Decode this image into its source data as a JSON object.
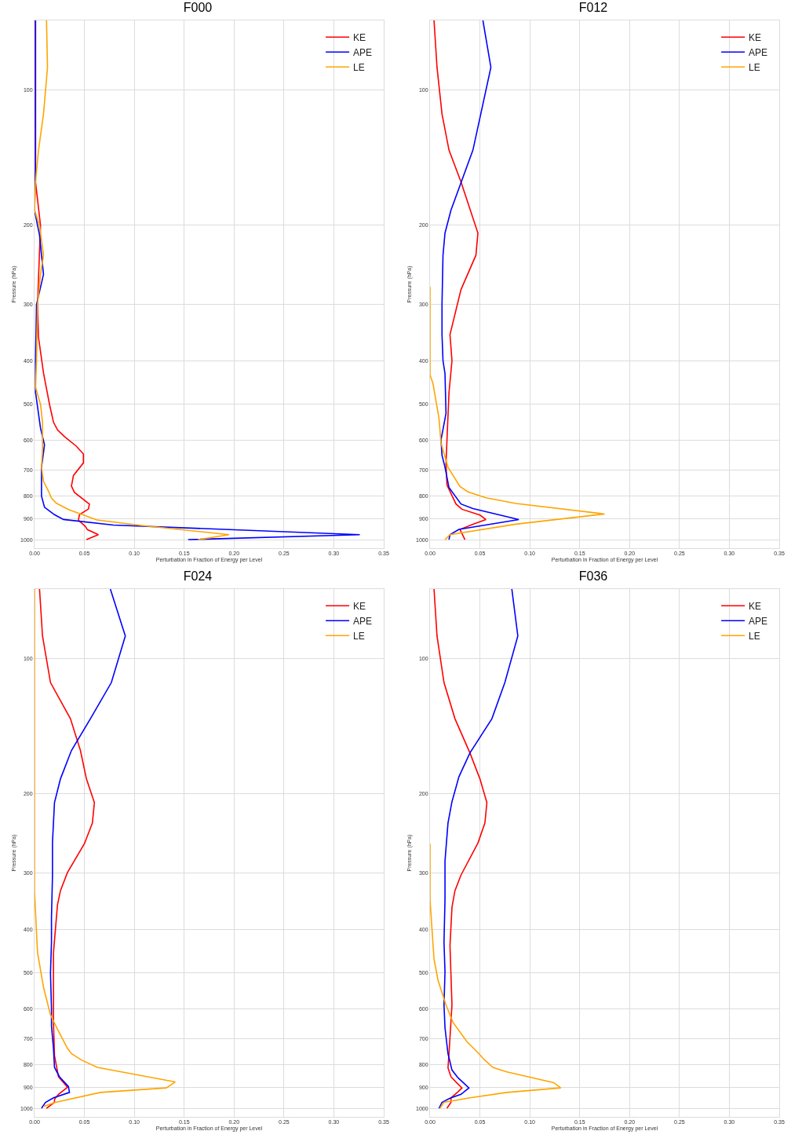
{
  "chart_data": [
    {
      "type": "line",
      "title": "F000",
      "xlabel": "Perturbation in Fraction of Energy per Level",
      "ylabel": "Pressure (hPa)",
      "log": "y",
      "grid": true,
      "legend": "top right",
      "xlim": [
        0,
        0.35
      ],
      "xticks": [
        {
          "value": 0,
          "label": "0.00"
        },
        {
          "value": 0.05,
          "label": "0.05"
        },
        {
          "value": 0.1,
          "label": "0.10"
        },
        {
          "value": 0.15,
          "label": "0.15"
        },
        {
          "value": 0.2,
          "label": "0.20"
        },
        {
          "value": 0.25,
          "label": "0.25"
        },
        {
          "value": 0.3,
          "label": "0.30"
        },
        {
          "value": 0.35,
          "label": "0.35"
        }
      ],
      "ylim": [
        1045,
        70
      ],
      "yticks": [
        100,
        200,
        300,
        400,
        500,
        600,
        700,
        800,
        900,
        1000
      ],
      "series": [
        {
          "name": "KE",
          "color": "#ff0000",
          "x": [
            0.001,
            0.001,
            0.001,
            0.006,
            0.003,
            0.004,
            0.009,
            0.015,
            0.019,
            0.023,
            0.03,
            0.042,
            0.049,
            0.049,
            0.039,
            0.037,
            0.04,
            0.055,
            0.054,
            0.045,
            0.044,
            0.051,
            0.053,
            0.064,
            0.052
          ],
          "values": [
            70,
            100,
            160,
            200,
            300,
            355,
            426,
            500,
            548,
            570,
            590,
            620,
            645,
            675,
            720,
            760,
            785,
            834,
            855,
            880,
            905,
            935,
            950,
            975,
            1000
          ]
        },
        {
          "name": "APE",
          "color": "#0000ff",
          "x": [
            0.001,
            0.001,
            0,
            0.003,
            0.005,
            0.007,
            0.009,
            0.002,
            0.001,
            0.001,
            0.006,
            0.01,
            0.009,
            0.007,
            0.007,
            0.01,
            0.014,
            0.02,
            0.029,
            0.079,
            0.326,
            0.154
          ],
          "values": [
            70,
            150,
            185,
            200,
            210,
            233,
            257,
            300,
            400,
            470,
            565,
            615,
            640,
            690,
            800,
            847,
            860,
            880,
            902,
            928,
            975,
            1000
          ]
        },
        {
          "name": "LE",
          "color": "#ffa500",
          "x": [
            0.012,
            0.013,
            0.009,
            0.004,
            0.001,
            0,
            0.005,
            0.009,
            0.006,
            0.003,
            0.002,
            0.001,
            0.006,
            0.008,
            0.008,
            0.007,
            0.009,
            0.014,
            0.017,
            0.022,
            0.034,
            0.0625,
            0.107,
            0.195,
            0.164
          ],
          "values": [
            70,
            89,
            113,
            136,
            160,
            185,
            200,
            233,
            257,
            300,
            400,
            458,
            500,
            548,
            632,
            690,
            742,
            780,
            809,
            830,
            857,
            904,
            930,
            975,
            1000
          ]
        }
      ]
    },
    {
      "type": "line",
      "title": "F012",
      "xlabel": "Perturbation in Fraction of Energy per Level",
      "ylabel": "Pressure (hPa)",
      "log": "y",
      "grid": true,
      "legend": "top right",
      "xlim": [
        0,
        0.35
      ],
      "xticks": [
        {
          "value": 0,
          "label": "0.00"
        },
        {
          "value": 0.05,
          "label": "0.05"
        },
        {
          "value": 0.1,
          "label": "0.10"
        },
        {
          "value": 0.15,
          "label": "0.15"
        },
        {
          "value": 0.2,
          "label": "0.20"
        },
        {
          "value": 0.25,
          "label": "0.25"
        },
        {
          "value": 0.3,
          "label": "0.30"
        },
        {
          "value": 0.35,
          "label": "0.35"
        }
      ],
      "ylim": [
        1045,
        70
      ],
      "yticks": [
        100,
        200,
        300,
        400,
        500,
        600,
        700,
        800,
        900,
        1000
      ],
      "series": [
        {
          "name": "KE",
          "color": "#ff0000",
          "x": [
            0.004,
            0.007,
            0.012,
            0.019,
            0.031,
            0.048,
            0.046,
            0.031,
            0.02,
            0.022,
            0.019,
            0.017,
            0.016,
            0.017,
            0.026,
            0.032,
            0.05,
            0.056,
            0.043,
            0.03,
            0.035
          ],
          "values": [
            70,
            89,
            113,
            136,
            160,
            208,
            233,
            278,
            350,
            400,
            471,
            600,
            680,
            756,
            833,
            856,
            882,
            902,
            924,
            949,
            1000
          ]
        },
        {
          "name": "APE",
          "color": "#0000ff",
          "x": [
            0.053,
            0.061,
            0.043,
            0.021,
            0.015,
            0.013,
            0.012,
            0.012,
            0.013,
            0.015,
            0.016,
            0.011,
            0.012,
            0.015,
            0.019,
            0.031,
            0.043,
            0.089,
            0.029,
            0.02,
            0.019
          ],
          "values": [
            70,
            89,
            136,
            185,
            208,
            233,
            300,
            350,
            400,
            427,
            524,
            600,
            649,
            690,
            766,
            833,
            853,
            902,
            949,
            975,
            1000
          ]
        },
        {
          "name": "LE",
          "color": "#ffa500",
          "x": [
            0,
            0,
            0.003,
            0.009,
            0.011,
            0.018,
            0.03,
            0.038,
            0.056,
            0.086,
            0.175,
            0.086,
            0.02,
            0.015
          ],
          "values": [
            274,
            430,
            450,
            538,
            610,
            690,
            762,
            783,
            807,
            831,
            877,
            924,
            975,
            1000
          ]
        }
      ]
    },
    {
      "type": "line",
      "title": "F024",
      "xlabel": "Perturbation in Fraction of Energy per Level",
      "ylabel": "Pressure (hPa)",
      "log": "y",
      "grid": true,
      "legend": "top right",
      "xlim": [
        0,
        0.35
      ],
      "xticks": [
        {
          "value": 0,
          "label": "0.00"
        },
        {
          "value": 0.05,
          "label": "0.05"
        },
        {
          "value": 0.1,
          "label": "0.10"
        },
        {
          "value": 0.15,
          "label": "0.15"
        },
        {
          "value": 0.2,
          "label": "0.20"
        },
        {
          "value": 0.25,
          "label": "0.25"
        },
        {
          "value": 0.3,
          "label": "0.30"
        },
        {
          "value": 0.35,
          "label": "0.35"
        }
      ],
      "ylim": [
        1045,
        70
      ],
      "yticks": [
        100,
        200,
        300,
        400,
        500,
        600,
        700,
        800,
        900,
        1000
      ],
      "series": [
        {
          "name": "KE",
          "color": "#ff0000",
          "x": [
            0.005,
            0.008,
            0.016,
            0.036,
            0.046,
            0.052,
            0.06,
            0.058,
            0.05,
            0.033,
            0.026,
            0.023,
            0.019,
            0.019,
            0.02,
            0.024,
            0.033,
            0.024,
            0.02,
            0.02,
            0.012
          ],
          "values": [
            70,
            89,
            113,
            136,
            160,
            185,
            209,
            232,
            258,
            299,
            328,
            353,
            450,
            644,
            763,
            851,
            898,
            931,
            956,
            970,
            1000
          ]
        },
        {
          "name": "APE",
          "color": "#0000ff",
          "x": [
            0.076,
            0.091,
            0.077,
            0.056,
            0.037,
            0.026,
            0.02,
            0.018,
            0.018,
            0.017,
            0.017,
            0.016,
            0.017,
            0.017,
            0.019,
            0.02,
            0.025,
            0.034,
            0.035,
            0.019,
            0.011,
            0.007
          ],
          "values": [
            70,
            89,
            113,
            136,
            160,
            185,
            209,
            256,
            303,
            376,
            427,
            501,
            600,
            656,
            736,
            811,
            851,
            895,
            922,
            948,
            970,
            1000
          ]
        },
        {
          "name": "LE",
          "color": "#ffa500",
          "x": [
            0,
            0,
            0.003,
            0.009,
            0.016,
            0.023,
            0.033,
            0.037,
            0.047,
            0.063,
            0.141,
            0.132,
            0.066,
            0.021,
            0.009
          ],
          "values": [
            70,
            331,
            450,
            538,
            620,
            667,
            736,
            756,
            781,
            811,
            874,
            901,
            922,
            970,
            991
          ]
        }
      ]
    },
    {
      "type": "line",
      "title": "F036",
      "xlabel": "Perturbation in Fraction of Energy per Level",
      "ylabel": "Pressure (hPa)",
      "log": "y",
      "grid": true,
      "legend": "top right",
      "xlim": [
        0,
        0.35
      ],
      "xticks": [
        {
          "value": 0,
          "label": "0.00"
        },
        {
          "value": 0.05,
          "label": "0.05"
        },
        {
          "value": 0.1,
          "label": "0.10"
        },
        {
          "value": 0.15,
          "label": "0.15"
        },
        {
          "value": 0.2,
          "label": "0.20"
        },
        {
          "value": 0.25,
          "label": "0.25"
        },
        {
          "value": 0.3,
          "label": "0.30"
        },
        {
          "value": 0.35,
          "label": "0.35"
        }
      ],
      "ylim": [
        1045,
        70
      ],
      "yticks": [
        100,
        200,
        300,
        400,
        500,
        600,
        700,
        800,
        900,
        1000
      ],
      "series": [
        {
          "name": "KE",
          "color": "#ff0000",
          "x": [
            0.004,
            0.007,
            0.014,
            0.025,
            0.04,
            0.05,
            0.057,
            0.055,
            0.048,
            0.031,
            0.025,
            0.022,
            0.02,
            0.022,
            0.019,
            0.018,
            0.021,
            0.026,
            0.032,
            0.028,
            0.021,
            0.021,
            0.017
          ],
          "values": [
            70,
            89,
            113,
            136,
            162,
            185,
            209,
            232,
            257,
            303,
            328,
            357,
            435,
            589,
            756,
            813,
            851,
            874,
            901,
            919,
            948,
            970,
            1000
          ]
        },
        {
          "name": "APE",
          "color": "#0000ff",
          "x": [
            0.082,
            0.088,
            0.075,
            0.062,
            0.04,
            0.029,
            0.022,
            0.018,
            0.015,
            0.015,
            0.014,
            0.015,
            0.014,
            0.015,
            0.018,
            0.022,
            0.028,
            0.039,
            0.031,
            0.02,
            0.012,
            0.009
          ],
          "values": [
            70,
            89,
            113,
            136,
            162,
            183,
            208,
            232,
            282,
            344,
            427,
            497,
            589,
            662,
            756,
            822,
            855,
            901,
            931,
            950,
            970,
            1000
          ]
        },
        {
          "name": "LE",
          "color": "#ffa500",
          "x": [
            0,
            0,
            0.004,
            0.008,
            0.016,
            0.023,
            0.037,
            0.049,
            0.054,
            0.063,
            0.077,
            0.124,
            0.131,
            0.077,
            0.04,
            0.014,
            0.01
          ],
          "values": [
            258,
            344,
            466,
            519,
            589,
            644,
            711,
            756,
            778,
            811,
            830,
            877,
            901,
            922,
            948,
            970,
            1000
          ]
        }
      ]
    }
  ]
}
